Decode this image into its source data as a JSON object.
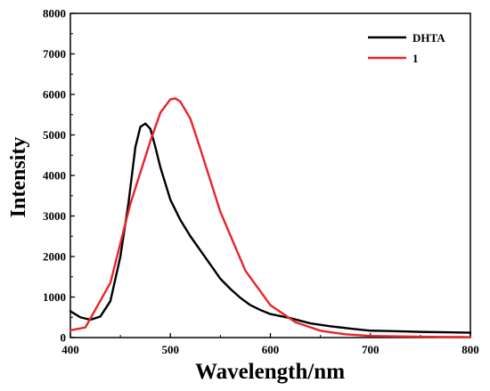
{
  "chart_data": {
    "type": "line",
    "title": "",
    "xlabel": "Wavelength/nm",
    "ylabel": "Intensity",
    "xlim": [
      400,
      800
    ],
    "ylim": [
      0,
      8000
    ],
    "x_ticks": [
      400,
      500,
      600,
      700,
      800
    ],
    "y_ticks": [
      0,
      1000,
      2000,
      3000,
      4000,
      5000,
      6000,
      7000,
      8000
    ],
    "x_tick_labels": [
      "400",
      "500",
      "600",
      "700",
      "800"
    ],
    "y_tick_labels": [
      "0",
      "1000",
      "2000",
      "3000",
      "4000",
      "5000",
      "6000",
      "7000",
      "8000"
    ],
    "grid": false,
    "legend_position": "top-right",
    "series": [
      {
        "name": "DHTA",
        "color": "#000000",
        "x": [
          400,
          410,
          420,
          430,
          440,
          450,
          458,
          465,
          470,
          475,
          480,
          485,
          490,
          500,
          510,
          520,
          530,
          540,
          550,
          560,
          570,
          580,
          590,
          600,
          620,
          640,
          660,
          680,
          700,
          720,
          750,
          800
        ],
        "y": [
          650,
          500,
          440,
          520,
          900,
          2000,
          3300,
          4700,
          5200,
          5280,
          5150,
          4700,
          4200,
          3400,
          2900,
          2500,
          2150,
          1800,
          1450,
          1200,
          980,
          800,
          680,
          580,
          480,
          350,
          280,
          220,
          170,
          160,
          140,
          120
        ]
      },
      {
        "name": "1",
        "color": "#e8242a",
        "x": [
          400,
          415,
          440,
          460,
          480,
          490,
          500,
          505,
          510,
          520,
          530,
          550,
          575,
          600,
          625,
          650,
          675,
          700,
          750,
          800
        ],
        "y": [
          180,
          250,
          1350,
          3300,
          4850,
          5550,
          5880,
          5900,
          5820,
          5400,
          4650,
          3100,
          1650,
          800,
          380,
          170,
          80,
          40,
          20,
          10
        ]
      }
    ]
  }
}
